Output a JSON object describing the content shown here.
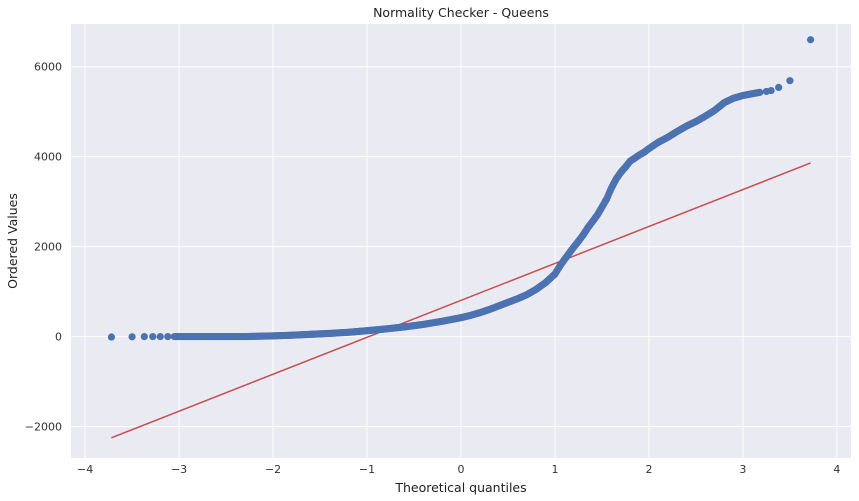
{
  "chart_data": {
    "type": "scatter",
    "title": "Normality Checker - Queens",
    "xlabel": "Theoretical quantiles",
    "ylabel": "Ordered Values",
    "xlim": [
      -4.15,
      4.15
    ],
    "ylim": [
      -2700,
      6950
    ],
    "xticks": [
      -4,
      -3,
      -2,
      -1,
      0,
      1,
      2,
      3,
      4
    ],
    "xtick_labels": [
      "−4",
      "−3",
      "−2",
      "−1",
      "0",
      "1",
      "2",
      "3",
      "4"
    ],
    "yticks": [
      -2000,
      0,
      2000,
      4000,
      6000
    ],
    "ytick_labels": [
      "−2000",
      "0",
      "2000",
      "4000",
      "6000"
    ],
    "grid": true,
    "background": "#eaeaf2",
    "grid_color": "#ffffff",
    "point_color": "#4c72b0",
    "line_color": "#c44e52",
    "series": [
      {
        "kind": "points",
        "x": [
          -3.72,
          -3.5,
          -3.37,
          -3.28,
          -3.2,
          -3.12,
          -3.05,
          -3.0,
          -2.95,
          -2.9,
          -2.85,
          -2.8,
          -2.7,
          -2.6,
          -2.5,
          -2.4,
          -2.3,
          -2.2,
          -2.1,
          -2.0,
          -1.8,
          -1.6,
          -1.4,
          -1.2,
          -1.0,
          -0.8,
          -0.6,
          -0.4,
          -0.2,
          0.0,
          0.1,
          0.2,
          0.3,
          0.4,
          0.5,
          0.6,
          0.7,
          0.8,
          0.9,
          1.0,
          1.05,
          1.1,
          1.15,
          1.2,
          1.25,
          1.3,
          1.35,
          1.4,
          1.45,
          1.5,
          1.55,
          1.6,
          1.65,
          1.7,
          1.75,
          1.8,
          1.85,
          1.9,
          1.95,
          2.0,
          2.05,
          2.1,
          2.2,
          2.3,
          2.4,
          2.5,
          2.6,
          2.7,
          2.8,
          2.9,
          3.0,
          3.1,
          3.18,
          3.25,
          3.3,
          3.38,
          3.5,
          3.72
        ],
        "y": [
          -10,
          -5,
          0,
          0,
          0,
          0,
          0,
          0,
          0,
          0,
          0,
          0,
          0,
          0,
          0,
          0,
          0,
          5,
          10,
          15,
          30,
          50,
          70,
          95,
          130,
          170,
          215,
          270,
          340,
          420,
          470,
          530,
          600,
          680,
          760,
          840,
          930,
          1050,
          1200,
          1390,
          1560,
          1710,
          1850,
          1990,
          2120,
          2260,
          2420,
          2560,
          2700,
          2880,
          3060,
          3300,
          3500,
          3650,
          3770,
          3900,
          3970,
          4040,
          4100,
          4180,
          4250,
          4320,
          4430,
          4560,
          4680,
          4780,
          4900,
          5030,
          5200,
          5300,
          5360,
          5400,
          5430,
          5450,
          5470,
          5540,
          5690,
          6600
        ]
      },
      {
        "kind": "fit-line",
        "x": [
          -3.72,
          3.72
        ],
        "y": [
          -2250,
          3860
        ]
      }
    ]
  }
}
